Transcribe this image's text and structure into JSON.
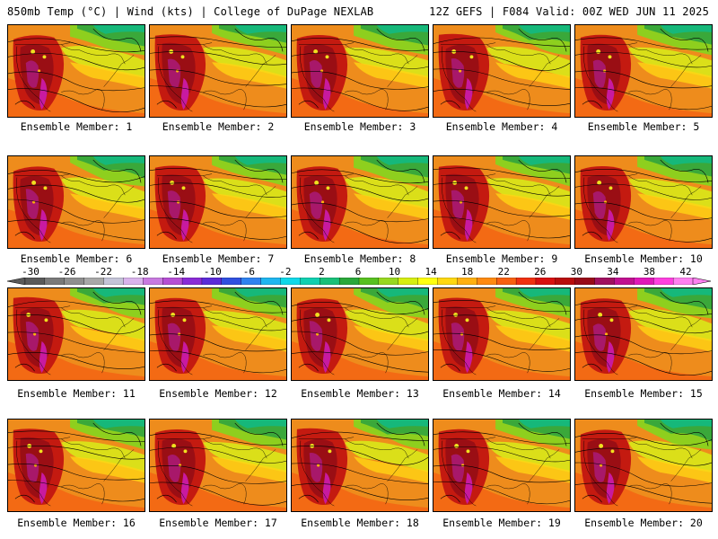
{
  "header": {
    "left": "850mb Temp (°C) | Wind (kts) | College of DuPage NEXLAB",
    "right": "12Z GEFS | F084 Valid: 00Z WED JUN 11 2025"
  },
  "panels": [
    {
      "label": "Ensemble Member: 1"
    },
    {
      "label": "Ensemble Member: 2"
    },
    {
      "label": "Ensemble Member: 3"
    },
    {
      "label": "Ensemble Member: 4"
    },
    {
      "label": "Ensemble Member: 5"
    },
    {
      "label": "Ensemble Member: 6"
    },
    {
      "label": "Ensemble Member: 7"
    },
    {
      "label": "Ensemble Member: 8"
    },
    {
      "label": "Ensemble Member: 9"
    },
    {
      "label": "Ensemble Member: 10"
    },
    {
      "label": "Ensemble Member: 11"
    },
    {
      "label": "Ensemble Member: 12"
    },
    {
      "label": "Ensemble Member: 13"
    },
    {
      "label": "Ensemble Member: 14"
    },
    {
      "label": "Ensemble Member: 15"
    },
    {
      "label": "Ensemble Member: 16"
    },
    {
      "label": "Ensemble Member: 17"
    },
    {
      "label": "Ensemble Member: 18"
    },
    {
      "label": "Ensemble Member: 19"
    },
    {
      "label": "Ensemble Member: 20"
    }
  ],
  "colorbar": {
    "ticks": [
      "-30",
      "-26",
      "-22",
      "-18",
      "-14",
      "-10",
      "-6",
      "-2",
      "2",
      "6",
      "10",
      "14",
      "18",
      "22",
      "26",
      "30",
      "34",
      "38",
      "42"
    ],
    "colors": [
      "#5a5a5a",
      "#7a7a7a",
      "#8f8f8f",
      "#a8a8a8",
      "#c4c4d8",
      "#d9b3ec",
      "#c87ae0",
      "#b64fd4",
      "#8a2bd6",
      "#5b2bd8",
      "#3050e0",
      "#2f82f0",
      "#1fb6f0",
      "#10d8e8",
      "#10d0b0",
      "#18c078",
      "#2aa83a",
      "#58c020",
      "#98d820",
      "#d6ee10",
      "#ffff10",
      "#ffd810",
      "#ffb010",
      "#ff8a10",
      "#f86010",
      "#f03010",
      "#d81010",
      "#b80c0c",
      "#980a18",
      "#a01060",
      "#c01090",
      "#e018b8",
      "#ff40e0",
      "#ff80f0"
    ]
  }
}
